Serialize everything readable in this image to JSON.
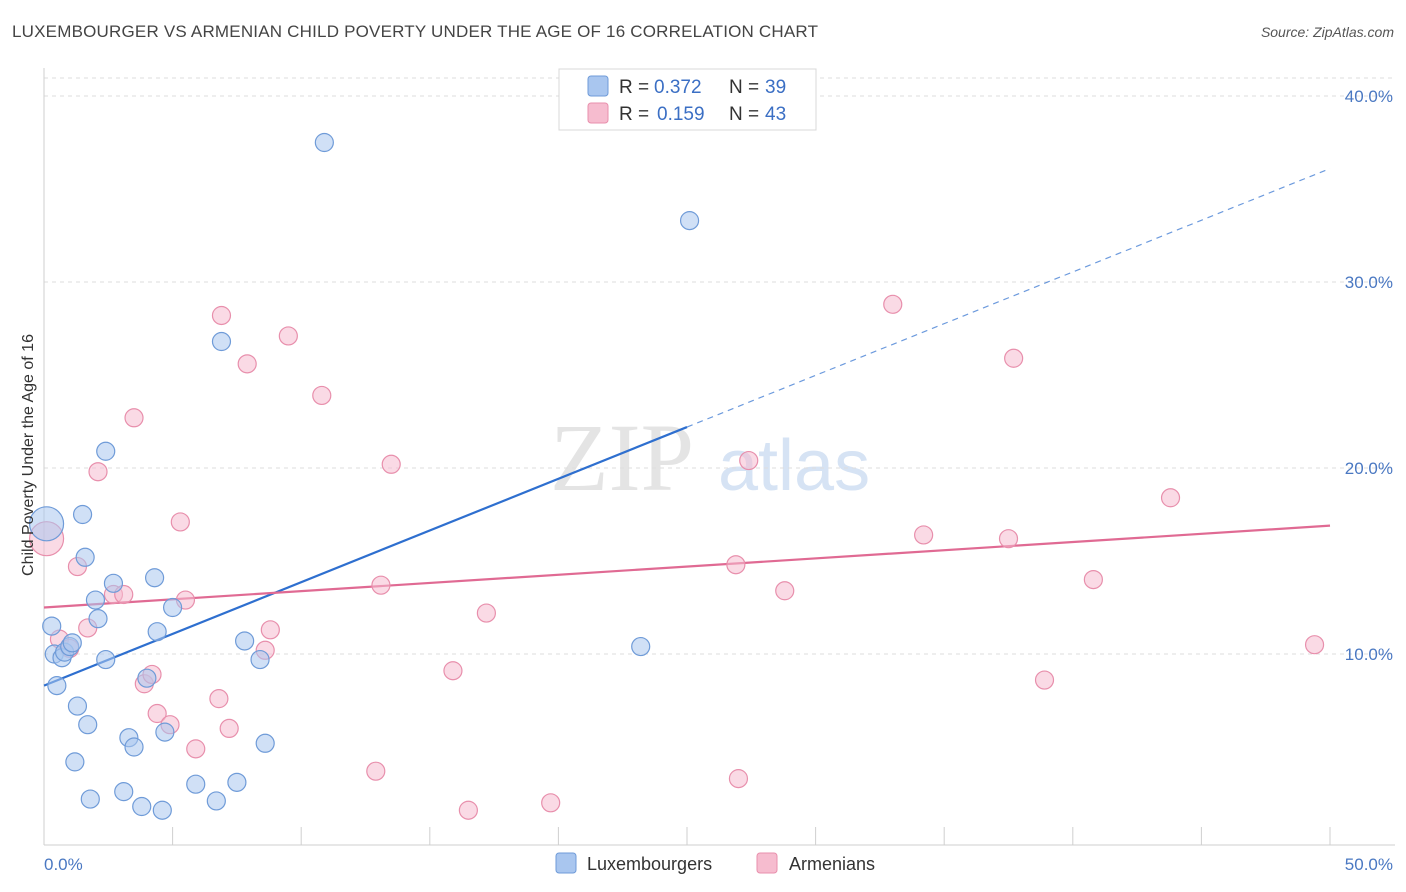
{
  "header": {
    "title": "LUXEMBOURGER VS ARMENIAN CHILD POVERTY UNDER THE AGE OF 16 CORRELATION CHART",
    "source": "Source: ZipAtlas.com"
  },
  "watermark": {
    "zip": "ZIP",
    "atlas": "atlas"
  },
  "colors": {
    "blue_fill": "#a9c6ef",
    "blue_stroke": "#6f9bd8",
    "blue_line": "#2e6fcf",
    "pink_fill": "#f6bccf",
    "pink_stroke": "#e88fac",
    "pink_line": "#e06a93",
    "grid": "#dedede",
    "tick_text": "#4a78c2"
  },
  "legend": {
    "rows": [
      {
        "r_label": "R =",
        "r_value": "0.372",
        "n_label": "N =",
        "n_value": "39"
      },
      {
        "r_label": "R =",
        "r_value": "0.159",
        "n_label": "N =",
        "n_value": "43"
      }
    ]
  },
  "bottom_legend": {
    "series1": "Luxembourgers",
    "series2": "Armenians"
  },
  "chart_data": {
    "type": "scatter",
    "title": "LUXEMBOURGER VS ARMENIAN CHILD POVERTY UNDER THE AGE OF 16 CORRELATION CHART",
    "xlabel": "",
    "ylabel": "Child Poverty Under the Age of 16",
    "xlim": [
      0,
      50
    ],
    "ylim": [
      1.5,
      42
    ],
    "x_tick_labels": [
      "0.0%",
      "50.0%"
    ],
    "y_ticks": [
      10,
      20,
      30,
      40
    ],
    "y_tick_labels": [
      "10.0%",
      "20.0%",
      "30.0%",
      "40.0%"
    ],
    "grid": true,
    "series": [
      {
        "name": "Luxembourgers",
        "r": 0.372,
        "n": 39,
        "trend": {
          "x0": 0,
          "y0": 8.3,
          "x1": 25,
          "y1": 22.2,
          "dashed_to_x": 50,
          "dashed_to_y": 36.1
        },
        "points": [
          [
            0.1,
            17.0
          ],
          [
            0.3,
            11.5
          ],
          [
            0.4,
            10.0
          ],
          [
            0.5,
            8.3
          ],
          [
            0.7,
            9.8
          ],
          [
            0.8,
            10.1
          ],
          [
            1.0,
            10.4
          ],
          [
            1.1,
            10.6
          ],
          [
            1.3,
            7.2
          ],
          [
            1.2,
            4.2
          ],
          [
            1.5,
            17.5
          ],
          [
            1.6,
            15.2
          ],
          [
            1.7,
            6.2
          ],
          [
            1.8,
            2.2
          ],
          [
            2.0,
            12.9
          ],
          [
            2.1,
            11.9
          ],
          [
            2.4,
            20.9
          ],
          [
            2.4,
            9.7
          ],
          [
            2.7,
            13.8
          ],
          [
            3.1,
            2.6
          ],
          [
            3.3,
            5.5
          ],
          [
            3.5,
            5.0
          ],
          [
            3.8,
            1.8
          ],
          [
            4.0,
            8.7
          ],
          [
            4.3,
            14.1
          ],
          [
            4.4,
            11.2
          ],
          [
            4.6,
            1.6
          ],
          [
            4.7,
            5.8
          ],
          [
            5.0,
            12.5
          ],
          [
            5.9,
            3.0
          ],
          [
            6.7,
            2.1
          ],
          [
            6.9,
            26.8
          ],
          [
            7.5,
            3.1
          ],
          [
            7.8,
            10.7
          ],
          [
            8.4,
            9.7
          ],
          [
            8.6,
            5.2
          ],
          [
            10.9,
            37.5
          ],
          [
            23.2,
            10.4
          ],
          [
            25.1,
            33.3
          ]
        ]
      },
      {
        "name": "Armenians",
        "r": 0.159,
        "n": 43,
        "trend": {
          "x0": 0,
          "y0": 12.5,
          "x1": 50,
          "y1": 16.9
        },
        "points": [
          [
            0.1,
            16.2
          ],
          [
            0.6,
            10.8
          ],
          [
            1.0,
            10.3
          ],
          [
            1.3,
            14.7
          ],
          [
            1.7,
            11.4
          ],
          [
            2.1,
            19.8
          ],
          [
            2.7,
            13.2
          ],
          [
            3.1,
            13.2
          ],
          [
            3.5,
            22.7
          ],
          [
            3.9,
            8.4
          ],
          [
            4.2,
            8.9
          ],
          [
            4.4,
            6.8
          ],
          [
            4.9,
            6.2
          ],
          [
            5.3,
            17.1
          ],
          [
            5.5,
            12.9
          ],
          [
            5.9,
            4.9
          ],
          [
            6.8,
            7.6
          ],
          [
            6.9,
            28.2
          ],
          [
            7.2,
            6.0
          ],
          [
            7.9,
            25.6
          ],
          [
            8.6,
            10.2
          ],
          [
            8.8,
            11.3
          ],
          [
            9.5,
            27.1
          ],
          [
            10.8,
            23.9
          ],
          [
            12.9,
            3.7
          ],
          [
            13.1,
            13.7
          ],
          [
            13.5,
            20.2
          ],
          [
            15.9,
            9.1
          ],
          [
            16.5,
            1.6
          ],
          [
            17.2,
            12.2
          ],
          [
            19.7,
            2.0
          ],
          [
            26.9,
            14.8
          ],
          [
            27.0,
            3.3
          ],
          [
            27.4,
            20.4
          ],
          [
            28.8,
            13.4
          ],
          [
            33.0,
            28.8
          ],
          [
            34.2,
            16.4
          ],
          [
            37.5,
            16.2
          ],
          [
            37.7,
            25.9
          ],
          [
            38.9,
            8.6
          ],
          [
            40.8,
            14.0
          ],
          [
            43.8,
            18.4
          ],
          [
            49.4,
            10.5
          ]
        ]
      }
    ]
  }
}
